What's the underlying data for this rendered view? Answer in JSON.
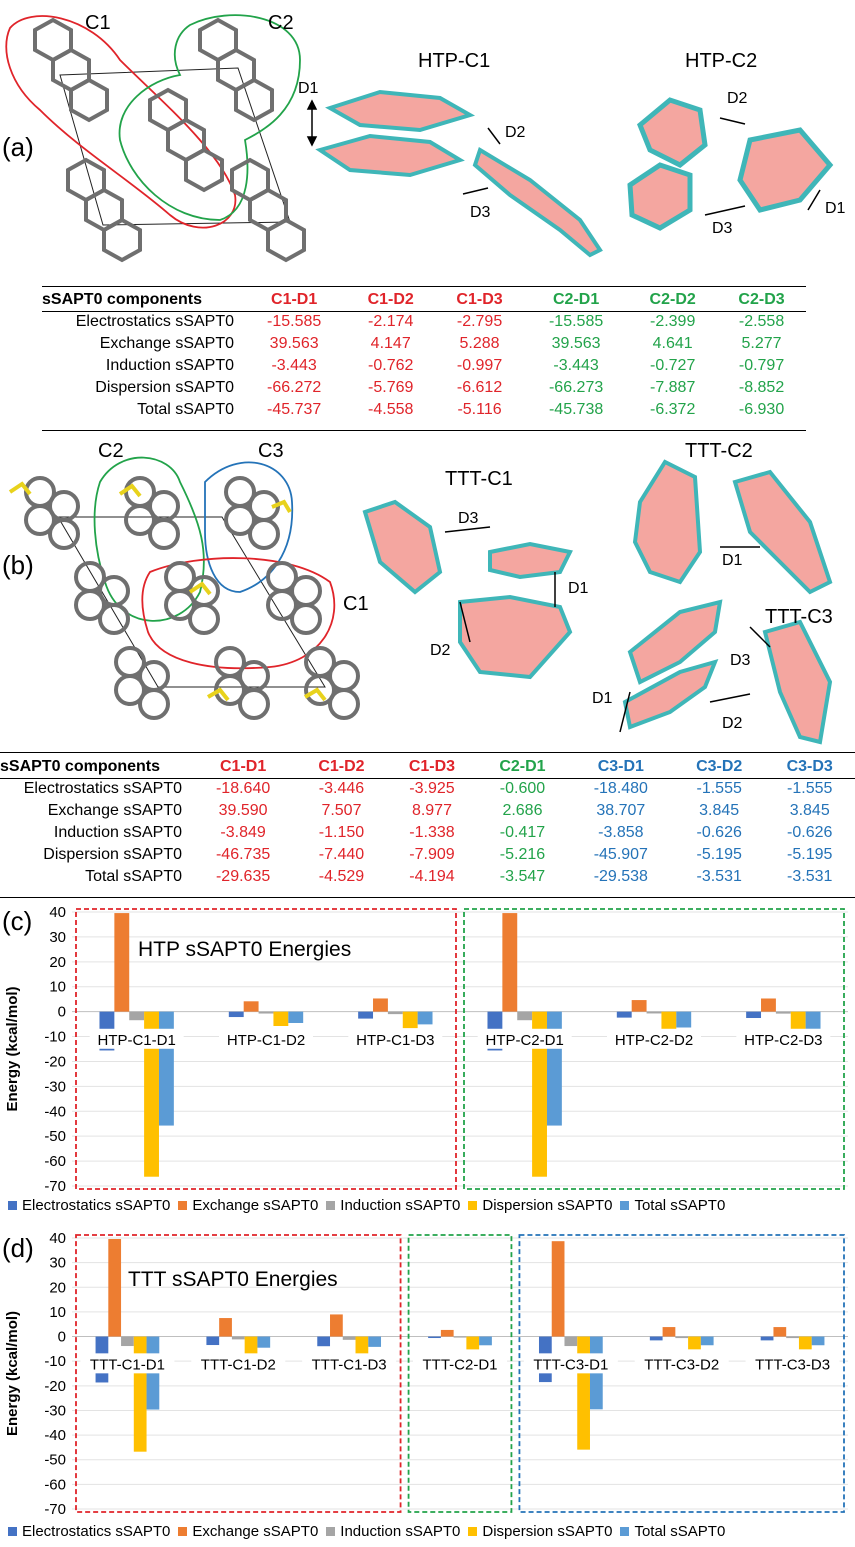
{
  "panel_a": {
    "label": "(a)",
    "cluster_labels": [
      "C1",
      "C2"
    ],
    "htp_c1_title": "HTP-C1",
    "htp_c2_title": "HTP-C2",
    "d_labels": [
      "D1",
      "D2",
      "D3"
    ],
    "table": {
      "headers": [
        "sSAPT0 components",
        "C1-D1",
        "C1-D2",
        "C1-D3",
        "C2-D1",
        "C2-D2",
        "C2-D3"
      ],
      "header_colors": [
        "black",
        "red",
        "red",
        "red",
        "green",
        "green",
        "green"
      ],
      "rows": [
        {
          "label": "Electrostatics sSAPT0",
          "values": [
            "-15.585",
            "-2.174",
            "-2.795",
            "-15.585",
            "-2.399",
            "-2.558"
          ]
        },
        {
          "label": "Exchange sSAPT0",
          "values": [
            "39.563",
            "4.147",
            "5.288",
            "39.563",
            "4.641",
            "5.277"
          ]
        },
        {
          "label": "Induction sSAPT0",
          "values": [
            "-3.443",
            "-0.762",
            "-0.997",
            "-3.443",
            "-0.727",
            "-0.797"
          ]
        },
        {
          "label": "Dispersion sSAPT0",
          "values": [
            "-66.272",
            "-5.769",
            "-6.612",
            "-66.273",
            "-7.887",
            "-8.852"
          ]
        },
        {
          "label": "Total sSAPT0",
          "values": [
            "-45.737",
            "-4.558",
            "-5.116",
            "-45.738",
            "-6.372",
            "-6.930"
          ]
        }
      ]
    }
  },
  "panel_b": {
    "label": "(b)",
    "cluster_labels": [
      "C2",
      "C3",
      "C1"
    ],
    "ttt_c1_title": "TTT-C1",
    "ttt_c2_title": "TTT-C2",
    "ttt_c3_title": "TTT-C3",
    "d_labels": [
      "D1",
      "D2",
      "D3"
    ],
    "table": {
      "headers": [
        "sSAPT0 components",
        "C1-D1",
        "C1-D2",
        "C1-D3",
        "C2-D1",
        "C3-D1",
        "C3-D2",
        "C3-D3"
      ],
      "header_colors": [
        "black",
        "red",
        "red",
        "red",
        "green",
        "blue",
        "blue",
        "blue"
      ],
      "rows": [
        {
          "label": "Electrostatics sSAPT0",
          "values": [
            "-18.640",
            "-3.446",
            "-3.925",
            "-0.600",
            "-18.480",
            "-1.555",
            "-1.555"
          ]
        },
        {
          "label": "Exchange sSAPT0",
          "values": [
            "39.590",
            "7.507",
            "8.977",
            "2.686",
            "38.707",
            "3.845",
            "3.845"
          ]
        },
        {
          "label": "Induction sSAPT0",
          "values": [
            "-3.849",
            "-1.150",
            "-1.338",
            "-0.417",
            "-3.858",
            "-0.626",
            "-0.626"
          ]
        },
        {
          "label": "Dispersion sSAPT0",
          "values": [
            "-46.735",
            "-7.440",
            "-7.909",
            "-5.216",
            "-45.907",
            "-5.195",
            "-5.195"
          ]
        },
        {
          "label": "Total sSAPT0",
          "values": [
            "-29.635",
            "-4.529",
            "-4.194",
            "-3.547",
            "-29.538",
            "-3.531",
            "-3.531"
          ]
        }
      ]
    }
  },
  "panel_c": {
    "label": "(c)"
  },
  "panel_d": {
    "label": "(d)"
  },
  "colors": {
    "electrostatics": "#4472c4",
    "exchange": "#ed7d31",
    "induction": "#a5a5a5",
    "dispersion": "#ffc000",
    "total": "#5b9bd5",
    "red": "#e0242a",
    "green": "#22a34a",
    "blue": "#2473b8"
  },
  "chart_data": [
    {
      "type": "bar",
      "title": "HTP sSAPT0 Energies",
      "ylabel": "Energy (kcal/mol)",
      "ylim": [
        -70,
        40
      ],
      "yticks": [
        "40",
        "30",
        "20",
        "10",
        "0",
        "-10",
        "-20",
        "-30",
        "-40",
        "-50",
        "-60",
        "-70"
      ],
      "grid": true,
      "legend_position": "bottom",
      "categories": [
        "HTP-C1-D1",
        "HTP-C1-D2",
        "HTP-C1-D3",
        "HTP-C2-D1",
        "HTP-C2-D2",
        "HTP-C2-D3"
      ],
      "series": [
        {
          "name": "Electrostatics sSAPT0",
          "values": [
            -15.585,
            -2.174,
            -2.795,
            -15.585,
            -2.399,
            -2.558
          ]
        },
        {
          "name": "Exchange sSAPT0",
          "values": [
            39.563,
            4.147,
            5.288,
            39.563,
            4.641,
            5.277
          ]
        },
        {
          "name": "Induction sSAPT0",
          "values": [
            -3.443,
            -0.762,
            -0.997,
            -3.443,
            -0.727,
            -0.797
          ]
        },
        {
          "name": "Dispersion sSAPT0",
          "values": [
            -66.272,
            -5.769,
            -6.612,
            -66.273,
            -7.887,
            -8.852
          ]
        },
        {
          "name": "Total sSAPT0",
          "values": [
            -45.737,
            -4.558,
            -5.116,
            -45.738,
            -6.372,
            -6.93
          ]
        }
      ],
      "group_boxes": [
        {
          "from": 0,
          "to": 2,
          "color": "red"
        },
        {
          "from": 3,
          "to": 5,
          "color": "green"
        }
      ]
    },
    {
      "type": "bar",
      "title": "TTT sSAPT0 Energies",
      "ylabel": "Energy (kcal/mol)",
      "ylim": [
        -70,
        40
      ],
      "yticks": [
        "40",
        "30",
        "20",
        "10",
        "0",
        "-10",
        "-20",
        "-30",
        "-40",
        "-50",
        "-60",
        "-70"
      ],
      "grid": true,
      "legend_position": "bottom",
      "categories": [
        "TTT-C1-D1",
        "TTT-C1-D2",
        "TTT-C1-D3",
        "TTT-C2-D1",
        "TTT-C3-D1",
        "TTT-C3-D2",
        "TTT-C3-D3"
      ],
      "series": [
        {
          "name": "Electrostatics sSAPT0",
          "values": [
            -18.64,
            -3.446,
            -3.925,
            -0.6,
            -18.48,
            -1.555,
            -1.555
          ]
        },
        {
          "name": "Exchange sSAPT0",
          "values": [
            39.59,
            7.507,
            8.977,
            2.686,
            38.707,
            3.845,
            3.845
          ]
        },
        {
          "name": "Induction sSAPT0",
          "values": [
            -3.849,
            -1.15,
            -1.338,
            -0.417,
            -3.858,
            -0.626,
            -0.626
          ]
        },
        {
          "name": "Dispersion sSAPT0",
          "values": [
            -46.735,
            -7.44,
            -7.909,
            -5.216,
            -45.907,
            -5.195,
            -5.195
          ]
        },
        {
          "name": "Total sSAPT0",
          "values": [
            -29.635,
            -4.529,
            -4.194,
            -3.547,
            -29.538,
            -3.531,
            -3.531
          ]
        }
      ],
      "group_boxes": [
        {
          "from": 0,
          "to": 2,
          "color": "red"
        },
        {
          "from": 3,
          "to": 3,
          "color": "green"
        },
        {
          "from": 4,
          "to": 6,
          "color": "blue"
        }
      ]
    }
  ]
}
